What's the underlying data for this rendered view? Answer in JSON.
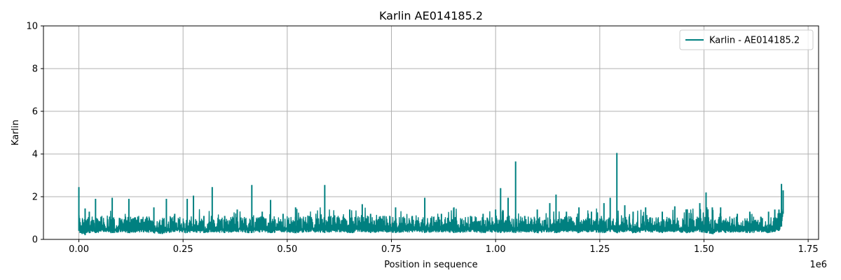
{
  "chart_data": {
    "type": "line",
    "title": "Karlin AE014185.2",
    "xlabel": "Position in sequence",
    "ylabel": "Karlin",
    "x_offset_text": "1e6",
    "xlim": [
      -85000,
      1775000
    ],
    "ylim": [
      0,
      10
    ],
    "x_ticks": [
      0,
      250000,
      500000,
      750000,
      1000000,
      1250000,
      1500000,
      1750000
    ],
    "x_tick_labels": [
      "0.00",
      "0.25",
      "0.50",
      "0.75",
      "1.00",
      "1.25",
      "1.50",
      "1.75"
    ],
    "y_ticks": [
      0,
      2,
      4,
      6,
      8,
      10
    ],
    "y_tick_labels": [
      "0",
      "2",
      "4",
      "6",
      "8",
      "10"
    ],
    "grid": true,
    "legend_position": "top-right",
    "reference_line": {
      "y": 0,
      "style": "dashed"
    },
    "colors": {
      "series": "#008080",
      "grid": "#b0b0b0",
      "reference": "#808080"
    },
    "series": [
      {
        "name": "Karlin - AE014185.2",
        "x": [
          0,
          3000,
          8000,
          15000,
          25000,
          32000,
          40000,
          60000,
          80000,
          100000,
          120000,
          150000,
          180000,
          200000,
          210000,
          230000,
          260000,
          275000,
          300000,
          320000,
          350000,
          380000,
          415000,
          440000,
          460000,
          490000,
          520000,
          550000,
          590000,
          620000,
          650000,
          680000,
          700000,
          730000,
          760000,
          800000,
          830000,
          870000,
          900000,
          940000,
          970000,
          1000000,
          1012000,
          1030000,
          1048000,
          1070000,
          1100000,
          1130000,
          1145000,
          1170000,
          1200000,
          1230000,
          1260000,
          1275000,
          1291000,
          1310000,
          1330000,
          1360000,
          1400000,
          1430000,
          1460000,
          1490000,
          1505000,
          1520000,
          1540000,
          1552000,
          1580000,
          1610000,
          1640000,
          1655000,
          1670000,
          1680000,
          1686000,
          1690000
        ],
        "values": [
          2.45,
          0.8,
          0.45,
          1.45,
          1.3,
          0.9,
          1.9,
          0.8,
          1.95,
          0.9,
          1.9,
          0.85,
          1.5,
          0.9,
          1.9,
          1.2,
          1.9,
          2.05,
          1.1,
          2.45,
          1.1,
          1.4,
          2.55,
          1.3,
          1.85,
          1.2,
          1.5,
          1.1,
          2.55,
          1.0,
          1.4,
          1.65,
          1.2,
          1.1,
          1.5,
          1.1,
          1.95,
          1.2,
          1.5,
          1.1,
          1.2,
          1.4,
          2.4,
          1.95,
          3.65,
          1.1,
          1.4,
          1.7,
          2.1,
          1.3,
          1.5,
          1.3,
          1.7,
          1.95,
          4.05,
          1.6,
          1.3,
          1.5,
          1.3,
          1.55,
          1.4,
          1.7,
          2.2,
          1.5,
          1.5,
          0.9,
          1.2,
          1.3,
          1.0,
          1.3,
          1.4,
          1.4,
          2.6,
          2.3
        ],
        "baseline_values": [
          0.4,
          0.3,
          0.25,
          0.2,
          0.3,
          0.35,
          0.3,
          0.35,
          0.3,
          0.35,
          0.3,
          0.35,
          0.3,
          0.25,
          0.3,
          0.35,
          0.3,
          0.35,
          0.3,
          0.35,
          0.3,
          0.35,
          0.3,
          0.35,
          0.3,
          0.35,
          0.3,
          0.35,
          0.3,
          0.35,
          0.3,
          0.35,
          0.3,
          0.35,
          0.3,
          0.35,
          0.3,
          0.35,
          0.3,
          0.35,
          0.3,
          0.35,
          0.3,
          0.35,
          0.3,
          0.35,
          0.3,
          0.35,
          0.3,
          0.35,
          0.3,
          0.35,
          0.3,
          0.35,
          0.3,
          0.35,
          0.3,
          0.35,
          0.3,
          0.35,
          0.3,
          0.35,
          0.3,
          0.25,
          0.35,
          0.3,
          0.35,
          0.3,
          0.35,
          0.3,
          0.35,
          0.4,
          0.6,
          1.2
        ]
      }
    ]
  }
}
